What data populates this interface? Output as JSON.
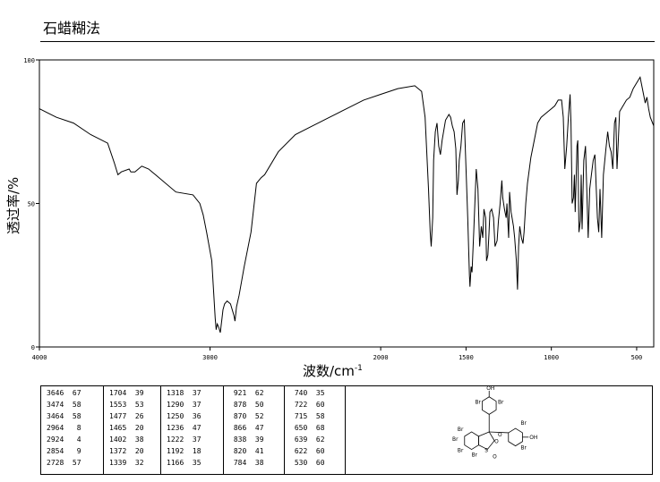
{
  "header": {
    "title": "石蜡糊法"
  },
  "chart_data": {
    "type": "line",
    "xlabel": "波数/cm",
    "xlabel_sup": "-1",
    "ylabel": "透过率/%",
    "xlim": [
      4000,
      400
    ],
    "ylim": [
      0,
      100
    ],
    "xticks": [
      4000,
      3000,
      2000,
      1500,
      1000,
      500
    ],
    "xtick_labels": [
      "4000",
      "3000",
      "2000",
      "1500",
      "1000",
      "500"
    ],
    "yticks": [
      0,
      50,
      100
    ],
    "ytick_labels": [
      "0",
      "50",
      "100"
    ],
    "grid": false,
    "series": [
      {
        "x": [
          4000,
          3900,
          3800,
          3700,
          3600,
          3560,
          3540,
          3520,
          3474,
          3464,
          3440,
          3400,
          3360,
          3340,
          3320,
          3200,
          3100,
          3060,
          3040,
          3020,
          2990,
          2980,
          2970,
          2964,
          2958,
          2950,
          2940,
          2930,
          2924,
          2915,
          2900,
          2880,
          2860,
          2854,
          2845,
          2830,
          2800,
          2760,
          2728,
          2700,
          2680,
          2600,
          2500,
          2400,
          2300,
          2200,
          2100,
          2000,
          1900,
          1800,
          1760,
          1740,
          1720,
          1710,
          1704,
          1695,
          1690,
          1680,
          1670,
          1660,
          1650,
          1640,
          1620,
          1600,
          1590,
          1580,
          1570,
          1560,
          1553,
          1545,
          1540,
          1530,
          1520,
          1510,
          1500,
          1490,
          1480,
          1477,
          1470,
          1465,
          1455,
          1445,
          1440,
          1430,
          1420,
          1410,
          1402,
          1395,
          1385,
          1380,
          1372,
          1365,
          1360,
          1350,
          1339,
          1330,
          1318,
          1310,
          1300,
          1290,
          1285,
          1275,
          1265,
          1260,
          1250,
          1245,
          1236,
          1230,
          1222,
          1215,
          1205,
          1198,
          1192,
          1185,
          1175,
          1166,
          1160,
          1150,
          1140,
          1120,
          1100,
          1080,
          1060,
          1040,
          1020,
          1000,
          980,
          960,
          940,
          930,
          921,
          910,
          900,
          890,
          885,
          878,
          870,
          865,
          860,
          855,
          850,
          845,
          838,
          830,
          825,
          820,
          810,
          800,
          790,
          784,
          775,
          765,
          755,
          745,
          740,
          730,
          722,
          715,
          705,
          695,
          680,
          670,
          660,
          650,
          640,
          630,
          622,
          615,
          600,
          580,
          560,
          540,
          520,
          500,
          480,
          470,
          460,
          450,
          440,
          430,
          420,
          400
        ],
        "y": [
          83,
          80,
          78,
          74,
          71,
          64,
          60,
          61,
          62,
          61,
          61,
          63,
          62,
          61,
          60,
          54,
          53,
          50,
          46,
          40,
          30,
          20,
          10,
          6,
          8,
          7,
          5,
          10,
          13,
          15,
          16,
          15,
          11,
          9,
          14,
          18,
          28,
          40,
          57,
          59,
          60,
          68,
          74,
          77,
          80,
          83,
          86,
          88,
          90,
          91,
          89,
          80,
          55,
          40,
          35,
          45,
          65,
          75,
          78,
          70,
          67,
          72,
          79,
          81,
          80,
          77,
          75,
          69,
          53,
          58,
          65,
          70,
          78,
          79,
          62,
          45,
          25,
          21,
          28,
          26,
          40,
          55,
          62,
          55,
          35,
          42,
          38,
          48,
          45,
          30,
          32,
          40,
          47,
          48,
          45,
          35,
          37,
          44,
          50,
          58,
          52,
          48,
          45,
          50,
          38,
          54,
          47,
          45,
          42,
          38,
          30,
          20,
          35,
          42,
          38,
          36,
          40,
          50,
          57,
          66,
          72,
          78,
          80,
          81,
          82,
          83,
          84,
          86,
          86,
          80,
          62,
          70,
          80,
          88,
          78,
          50,
          52,
          60,
          47,
          58,
          70,
          72,
          40,
          44,
          60,
          41,
          65,
          70,
          50,
          38,
          55,
          60,
          65,
          67,
          60,
          45,
          40,
          55,
          38,
          60,
          69,
          75,
          70,
          68,
          62,
          78,
          80,
          62,
          82,
          84,
          86,
          87,
          90,
          92,
          94,
          91,
          88,
          85,
          87,
          83,
          80,
          77
        ]
      }
    ]
  },
  "peak_table": [
    [
      [
        "3646",
        "67"
      ],
      [
        "3474",
        "58"
      ],
      [
        "3464",
        "58"
      ],
      [
        "2964",
        "8"
      ],
      [
        "2924",
        "4"
      ],
      [
        "2854",
        "9"
      ],
      [
        "2728",
        "57"
      ]
    ],
    [
      [
        "1704",
        "39"
      ],
      [
        "1553",
        "53"
      ],
      [
        "1477",
        "26"
      ],
      [
        "1465",
        "20"
      ],
      [
        "1402",
        "38"
      ],
      [
        "1372",
        "20"
      ],
      [
        "1339",
        "32"
      ]
    ],
    [
      [
        "1318",
        "37"
      ],
      [
        "1290",
        "37"
      ],
      [
        "1250",
        "36"
      ],
      [
        "1236",
        "47"
      ],
      [
        "1222",
        "37"
      ],
      [
        "1192",
        "18"
      ],
      [
        "1166",
        "35"
      ]
    ],
    [
      [
        "921",
        "62"
      ],
      [
        "878",
        "50"
      ],
      [
        "870",
        "52"
      ],
      [
        "866",
        "47"
      ],
      [
        "838",
        "39"
      ],
      [
        "820",
        "41"
      ],
      [
        "784",
        "38"
      ]
    ],
    [
      [
        "740",
        "35"
      ],
      [
        "722",
        "60"
      ],
      [
        "715",
        "58"
      ],
      [
        "650",
        "68"
      ],
      [
        "639",
        "62"
      ],
      [
        "622",
        "60"
      ],
      [
        "530",
        "60"
      ]
    ]
  ],
  "structure": {
    "labels": [
      "OH",
      "Br",
      "Br",
      "Br",
      "Br",
      "Br",
      "Br",
      "O",
      "S",
      "O",
      "Br",
      "OH",
      "Br",
      "O"
    ]
  }
}
